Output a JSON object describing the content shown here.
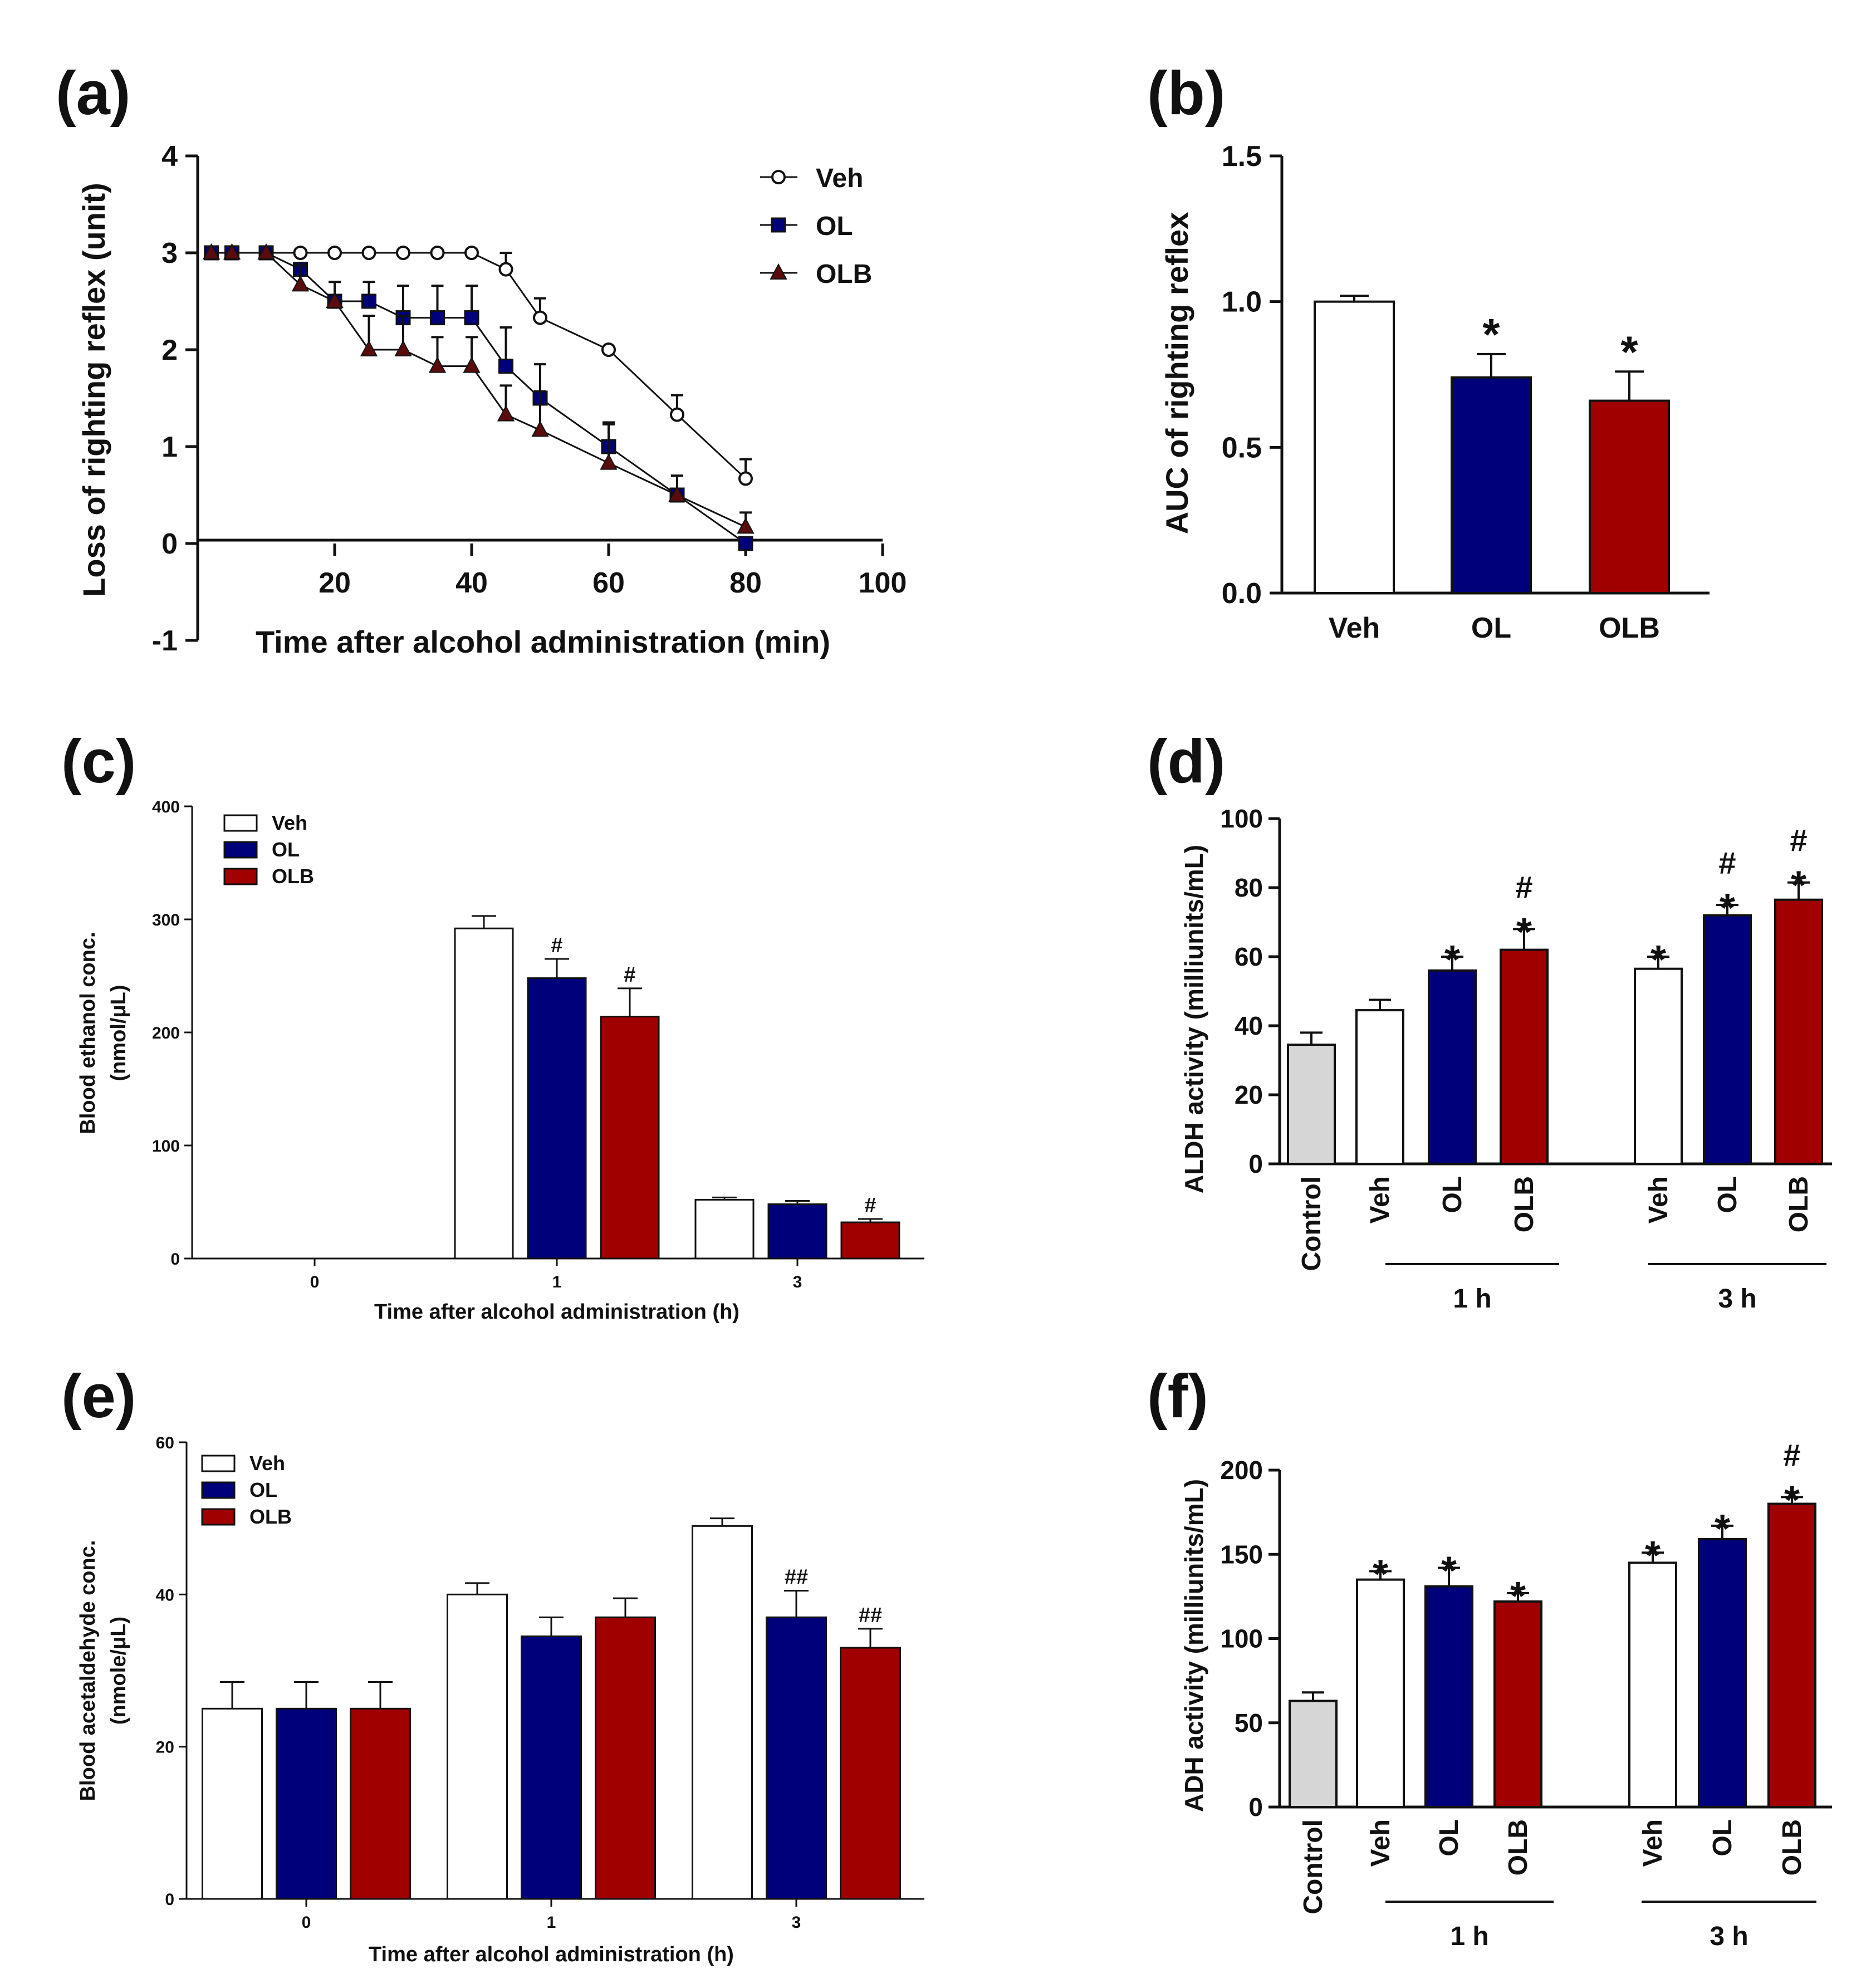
{
  "colors": {
    "veh": "#ffffff",
    "ol": "#00007a",
    "olb": "#a00000",
    "control": "#d6d6d6",
    "ink": "#111111"
  },
  "chart_data": [
    {
      "panel": "(a)",
      "type": "line",
      "title": "",
      "xlabel": "Time after alcohol administration (min)",
      "ylabel": "Loss of righting reflex (unit)",
      "xlim": [
        0,
        100
      ],
      "ylim": [
        -1,
        4
      ],
      "xticks": [
        "20",
        "40",
        "60",
        "80",
        "100"
      ],
      "yticks": [
        "-1",
        "0",
        "1",
        "2",
        "3",
        "4"
      ],
      "legend": [
        "Veh",
        "OL",
        "OLB"
      ],
      "legend_position": "top-right",
      "series": [
        {
          "name": "Veh",
          "marker": "circle",
          "x": [
            2,
            5,
            10,
            15,
            20,
            25,
            30,
            35,
            40,
            45,
            50,
            60,
            70,
            80
          ],
          "y": [
            3,
            3,
            3,
            3,
            3,
            3,
            3,
            3,
            3,
            2.83,
            2.33,
            2,
            1.33,
            0.67
          ],
          "err": [
            0,
            0,
            0,
            0,
            0,
            0,
            0,
            0,
            0,
            0.17,
            0.2,
            0,
            0.2,
            0.2
          ]
        },
        {
          "name": "OL",
          "marker": "square",
          "x": [
            2,
            5,
            10,
            15,
            20,
            25,
            30,
            35,
            40,
            45,
            50,
            60,
            70,
            80
          ],
          "y": [
            3,
            3,
            3,
            2.83,
            2.5,
            2.5,
            2.33,
            2.33,
            2.33,
            1.83,
            1.5,
            1,
            0.5,
            0
          ],
          "err": [
            0,
            0,
            0,
            0,
            0.2,
            0.2,
            0.33,
            0.33,
            0.33,
            0.4,
            0.35,
            0.25,
            0.2,
            0
          ]
        },
        {
          "name": "OLB",
          "marker": "triangle",
          "x": [
            2,
            5,
            10,
            15,
            20,
            25,
            30,
            35,
            40,
            45,
            50,
            60,
            70,
            80
          ],
          "y": [
            3,
            3,
            3,
            2.67,
            2.5,
            2,
            2,
            1.83,
            1.83,
            1.33,
            1.17,
            0.83,
            0.5,
            0.17
          ],
          "err": [
            0,
            0,
            0,
            0.2,
            0.2,
            0.35,
            0.35,
            0.3,
            0.3,
            0.3,
            0.4,
            0.4,
            0.2,
            0.15
          ]
        }
      ]
    },
    {
      "panel": "(b)",
      "type": "bar",
      "categories": [
        "Veh",
        "OL",
        "OLB"
      ],
      "values": [
        1.0,
        0.74,
        0.66
      ],
      "err": [
        0.02,
        0.08,
        0.1
      ],
      "annotations": [
        "",
        "*",
        "*"
      ],
      "ylabel": "AUC of righting reflex",
      "xlabel": "",
      "ylim": [
        0,
        1.5
      ],
      "yticks": [
        "0.0",
        "0.5",
        "1.0",
        "1.5"
      ]
    },
    {
      "panel": "(c)",
      "type": "bar",
      "categories": [
        "0",
        "1",
        "3"
      ],
      "series": [
        {
          "name": "Veh",
          "values": [
            0,
            292,
            52
          ],
          "err": [
            0,
            11,
            2
          ],
          "annotations": [
            "",
            "",
            ""
          ]
        },
        {
          "name": "OL",
          "values": [
            0,
            248,
            48
          ],
          "err": [
            0,
            17,
            3
          ],
          "annotations": [
            "",
            "#",
            ""
          ]
        },
        {
          "name": "OLB",
          "values": [
            0,
            214,
            32
          ],
          "err": [
            0,
            25,
            3
          ],
          "annotations": [
            "",
            "#",
            "#"
          ]
        }
      ],
      "legend": [
        "Veh",
        "OL",
        "OLB"
      ],
      "legend_position": "top-left",
      "ylabel": [
        "Blood ethanol conc.",
        "(nmol/μL)"
      ],
      "xlabel": "Time after alcohol administration (h)",
      "ylim": [
        0,
        400
      ],
      "yticks": [
        "0",
        "100",
        "200",
        "300",
        "400"
      ]
    },
    {
      "panel": "(d)",
      "type": "bar",
      "categories": [
        "Control",
        "Veh",
        "OL",
        "OLB",
        "Veh",
        "OL",
        "OLB"
      ],
      "values": [
        34.5,
        44.5,
        56,
        62,
        56.5,
        72,
        76.5
      ],
      "err": [
        3.5,
        3,
        4,
        6,
        3.5,
        3,
        5
      ],
      "annotations": [
        [],
        [],
        [
          "*"
        ],
        [
          "*",
          "#"
        ],
        [
          "*"
        ],
        [
          "*",
          "#"
        ],
        [
          "*",
          "#"
        ]
      ],
      "groups": [
        {
          "label": "1 h"
        },
        {
          "label": "3 h"
        }
      ],
      "ylabel": "ALDH activity (milliunits/mL)",
      "xlabel": "",
      "ylim": [
        0,
        100
      ],
      "yticks": [
        "0",
        "20",
        "40",
        "60",
        "80",
        "100"
      ]
    },
    {
      "panel": "(e)",
      "type": "bar",
      "categories": [
        "0",
        "1",
        "3"
      ],
      "series": [
        {
          "name": "Veh",
          "values": [
            25,
            40,
            49
          ],
          "err": [
            3.5,
            1.5,
            1
          ],
          "annotations": [
            "",
            "",
            ""
          ]
        },
        {
          "name": "OL",
          "values": [
            25,
            34.5,
            37
          ],
          "err": [
            3.5,
            2.5,
            3.5
          ],
          "annotations": [
            "",
            "",
            "##"
          ]
        },
        {
          "name": "OLB",
          "values": [
            25,
            37,
            33
          ],
          "err": [
            3.5,
            2.5,
            2.5
          ],
          "annotations": [
            "",
            "",
            "##"
          ]
        }
      ],
      "legend": [
        "Veh",
        "OL",
        "OLB"
      ],
      "legend_position": "top-left",
      "ylabel": [
        "Blood acetaldehyde conc.",
        "(nmole/μL)"
      ],
      "xlabel": "Time after alcohol administration (h)",
      "ylim": [
        0,
        60
      ],
      "yticks": [
        "0",
        "20",
        "40",
        "60"
      ]
    },
    {
      "panel": "(f)",
      "type": "bar",
      "categories": [
        "Control",
        "Veh",
        "OL",
        "OLB",
        "Veh",
        "OL",
        "OLB"
      ],
      "values": [
        63,
        135,
        131,
        122,
        145,
        159,
        180
      ],
      "err": [
        5,
        5,
        11,
        5,
        6,
        8,
        4
      ],
      "annotations": [
        [],
        [
          "*"
        ],
        [
          "*"
        ],
        [
          "*"
        ],
        [
          "*"
        ],
        [
          "*"
        ],
        [
          "*",
          "#"
        ]
      ],
      "groups": [
        {
          "label": "1 h"
        },
        {
          "label": "3 h"
        }
      ],
      "ylabel": "ADH activity (milliunits/mL)",
      "xlabel": "",
      "ylim": [
        0,
        200
      ],
      "yticks": [
        "0",
        "50",
        "100",
        "150",
        "200"
      ]
    }
  ]
}
